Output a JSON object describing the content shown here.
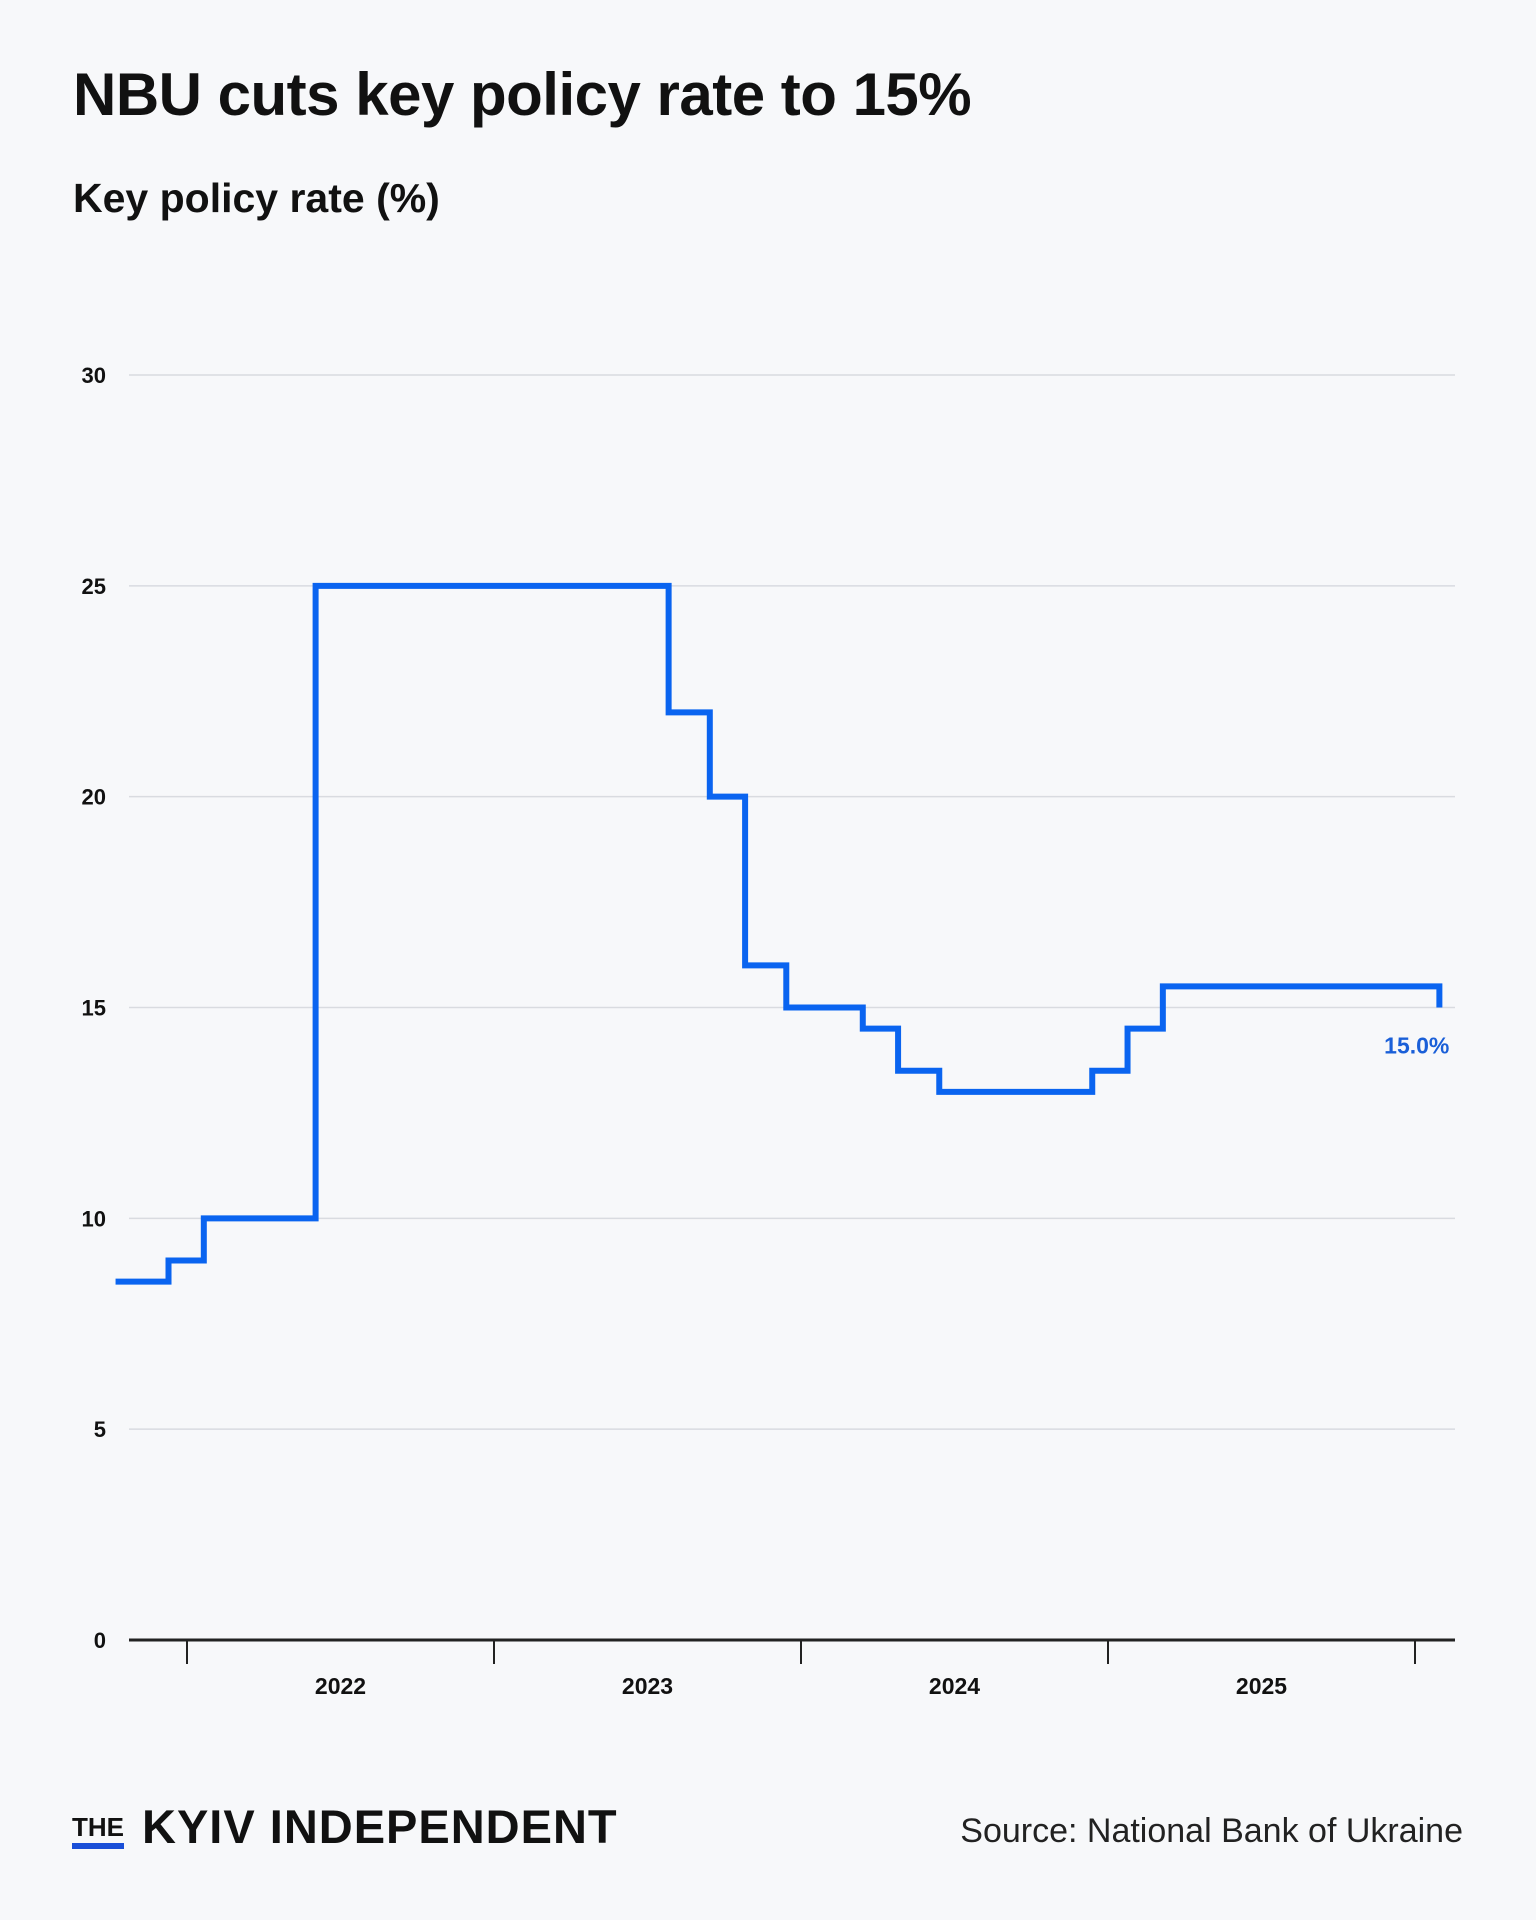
{
  "title": "NBU cuts key policy rate to 15%",
  "subtitle": "Key policy rate (%)",
  "logo": {
    "the": "THE",
    "name": "KYIV INDEPENDENT"
  },
  "source": "Source: National Bank of Ukraine",
  "colors": {
    "line": "#0a64f0",
    "label": "#1a5fd8",
    "axis": "#222222",
    "grid": "#d9dbe0",
    "background": "#f7f8fa"
  },
  "chart_data": {
    "type": "line",
    "step": true,
    "title": "Key policy rate (%)",
    "xlabel": "",
    "ylabel": "",
    "ylim": [
      0,
      30
    ],
    "yticks": [
      0,
      5,
      10,
      15,
      20,
      25,
      30
    ],
    "xtick_labels": [
      "2022",
      "2023",
      "2024",
      "2025"
    ],
    "grid": true,
    "end_label": "15.0%",
    "series": [
      {
        "points": [
          {
            "date": "2021-10-08",
            "value": 8.5
          },
          {
            "date": "2021-12-10",
            "value": 9
          },
          {
            "date": "2022-01-21",
            "value": 10
          },
          {
            "date": "2022-06-03",
            "value": 25
          },
          {
            "date": "2023-07-28",
            "value": 22
          },
          {
            "date": "2023-09-15",
            "value": 20
          },
          {
            "date": "2023-10-27",
            "value": 16
          },
          {
            "date": "2023-12-15",
            "value": 15
          },
          {
            "date": "2024-03-15",
            "value": 14.5
          },
          {
            "date": "2024-04-26",
            "value": 13.5
          },
          {
            "date": "2024-06-14",
            "value": 13
          },
          {
            "date": "2024-12-13",
            "value": 13.5
          },
          {
            "date": "2025-01-24",
            "value": 14.5
          },
          {
            "date": "2025-03-07",
            "value": 15.5
          },
          {
            "date": "2026-01-30",
            "value": 15
          }
        ]
      }
    ]
  }
}
